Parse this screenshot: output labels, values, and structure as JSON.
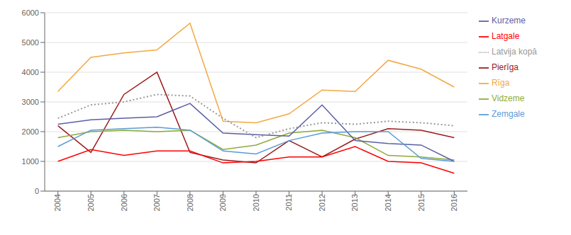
{
  "chart_data": {
    "type": "line",
    "x": [
      2004,
      2005,
      2006,
      2007,
      2008,
      2009,
      2010,
      2011,
      2012,
      2013,
      2014,
      2015,
      2016
    ],
    "xlim": [
      2003.6,
      2016.4
    ],
    "xticks": [
      2004,
      2005,
      2006,
      2007,
      2008,
      2009,
      2010,
      2011,
      2012,
      2013,
      2014,
      2015,
      2016
    ],
    "ylim": [
      0,
      6000
    ],
    "yticks": [
      0,
      1000,
      2000,
      3000,
      4000,
      5000,
      6000
    ],
    "grid": true,
    "legend": "right",
    "series": [
      {
        "name": "Rīga",
        "color": "#F4A843",
        "line_style": "solid",
        "values": [
          3350,
          4500,
          4650,
          4750,
          5650,
          2350,
          2300,
          2600,
          3400,
          3350,
          4400,
          4100,
          3500
        ]
      },
      {
        "name": "Pierīga",
        "color": "#9B1B1B",
        "line_style": "solid",
        "values": [
          2200,
          1300,
          3250,
          4000,
          1300,
          1050,
          950,
          1700,
          1150,
          1750,
          2100,
          2050,
          1800
        ]
      },
      {
        "name": "Vidzeme",
        "color": "#8DAB3A",
        "line_style": "solid",
        "values": [
          1800,
          2000,
          2050,
          2000,
          2050,
          1400,
          1550,
          1950,
          2050,
          1800,
          1200,
          1150,
          1050
        ]
      },
      {
        "name": "Kurzeme",
        "color": "#5B5EA6",
        "line_style": "solid",
        "values": [
          2250,
          2400,
          2450,
          2500,
          2950,
          1950,
          1900,
          1850,
          2900,
          1700,
          1600,
          1550,
          1000
        ]
      },
      {
        "name": "Zemgale",
        "color": "#5B9BD5",
        "line_style": "solid",
        "values": [
          1500,
          2050,
          2100,
          2150,
          2050,
          1350,
          1250,
          1700,
          1950,
          2000,
          2000,
          1100,
          1000
        ]
      },
      {
        "name": "Latgale",
        "color": "#FF0000",
        "line_style": "solid",
        "values": [
          1000,
          1400,
          1200,
          1350,
          1350,
          950,
          1000,
          1150,
          1150,
          1500,
          1000,
          950,
          600
        ]
      },
      {
        "name": "Latvija kopā",
        "color": "#999999",
        "line_style": "dotted",
        "values": [
          2450,
          2900,
          3000,
          3250,
          3200,
          2450,
          1800,
          2100,
          2300,
          2250,
          2350,
          2300,
          2200
        ]
      }
    ]
  }
}
